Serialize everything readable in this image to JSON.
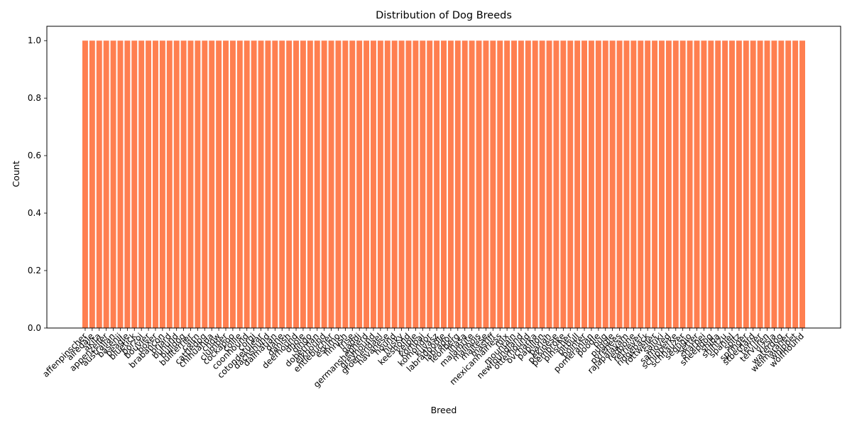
{
  "chart_data": {
    "type": "bar",
    "title": "Distribution of Dog Breeds",
    "xlabel": "Breed",
    "ylabel": "Count",
    "ylim": [
      0,
      1.05
    ],
    "yticks": [
      "0.0",
      "0.2",
      "0.4",
      "0.6",
      "0.8",
      "1.0"
    ],
    "yticks_values": [
      0,
      0.2,
      0.4,
      0.6,
      0.8,
      1.0
    ],
    "grid": false,
    "bar_color": "#ff7f50",
    "categories": [
      "affenpinscher",
      "airedale",
      "akita",
      "appenzeller",
      "australian",
      "basenji",
      "beagle",
      "bluetick",
      "borzoi",
      "bouvier",
      "boxer",
      "brabancon",
      "briard",
      "buhund",
      "bulldog",
      "bullterrier",
      "cairn",
      "cattledog",
      "chihuahua",
      "chow",
      "clumber",
      "cockapoo",
      "collie",
      "coonhound",
      "corgi",
      "cotondetulear",
      "dachshund",
      "dalmatian",
      "dane",
      "danish",
      "deerhound",
      "dhole",
      "dingo",
      "doberman",
      "elkhound",
      "entlebucher",
      "eskimo",
      "finnish",
      "frise",
      "gaddi",
      "germanshepherd",
      "greyhound",
      "groenendael",
      "havanese",
      "hound",
      "husky",
      "keeshond",
      "kelpie",
      "kombai",
      "komondor",
      "kuvasz",
      "labradoodle",
      "labrador",
      "leonberg",
      "lhasa",
      "malamute",
      "malinois",
      "maltese",
      "mastiff",
      "mexicanhairless",
      "mix",
      "mountain",
      "newfoundland",
      "otterhound",
      "ovcharka",
      "papillon",
      "pariah",
      "pekinese",
      "pembroke",
      "pinscher",
      "pitbull",
      "pointer",
      "pomeranian",
      "poodle",
      "pug",
      "puggle",
      "pyrenees",
      "rajapalayam",
      "redbone",
      "retriever",
      "ridgeback",
      "rottweiler",
      "saluki",
      "samoyed",
      "schipperke",
      "schnauzer",
      "segugio",
      "setter",
      "sharpei",
      "sheepdog",
      "shiba",
      "shihtzu",
      "spaniel",
      "spitz",
      "springer",
      "stbernard",
      "terrier",
      "tervuren",
      "vizsla",
      "waterdog",
      "weimaraner",
      "whippet",
      "wolfhound"
    ],
    "values": [
      1,
      1,
      1,
      1,
      1,
      1,
      1,
      1,
      1,
      1,
      1,
      1,
      1,
      1,
      1,
      1,
      1,
      1,
      1,
      1,
      1,
      1,
      1,
      1,
      1,
      1,
      1,
      1,
      1,
      1,
      1,
      1,
      1,
      1,
      1,
      1,
      1,
      1,
      1,
      1,
      1,
      1,
      1,
      1,
      1,
      1,
      1,
      1,
      1,
      1,
      1,
      1,
      1,
      1,
      1,
      1,
      1,
      1,
      1,
      1,
      1,
      1,
      1,
      1,
      1,
      1,
      1,
      1,
      1,
      1,
      1,
      1,
      1,
      1,
      1,
      1,
      1,
      1,
      1,
      1,
      1,
      1,
      1,
      1,
      1,
      1,
      1,
      1,
      1,
      1,
      1,
      1,
      1,
      1,
      1,
      1,
      1,
      1,
      1,
      1,
      1,
      1,
      1
    ]
  }
}
